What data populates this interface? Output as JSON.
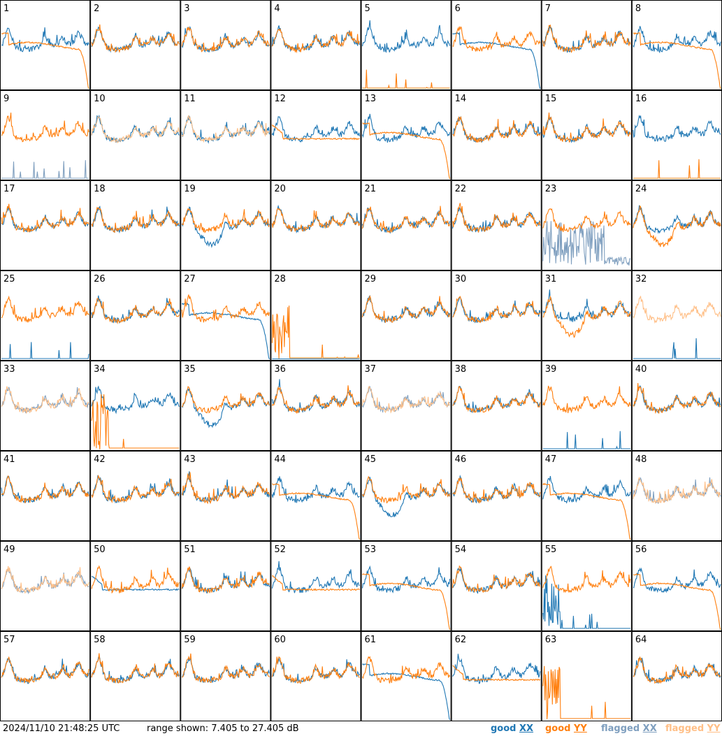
{
  "chart_data": {
    "type": "line",
    "panel_count": 64,
    "grid": "8x8",
    "panel_labels": [
      "1",
      "2",
      "3",
      "4",
      "5",
      "6",
      "7",
      "8",
      "9",
      "10",
      "11",
      "12",
      "13",
      "14",
      "15",
      "16",
      "17",
      "18",
      "19",
      "20",
      "21",
      "22",
      "23",
      "24",
      "25",
      "26",
      "27",
      "28",
      "29",
      "30",
      "31",
      "32",
      "33",
      "34",
      "35",
      "36",
      "37",
      "38",
      "39",
      "40",
      "41",
      "42",
      "43",
      "44",
      "45",
      "46",
      "47",
      "48",
      "49",
      "50",
      "51",
      "52",
      "53",
      "54",
      "55",
      "56",
      "57",
      "58",
      "59",
      "60",
      "61",
      "62",
      "63",
      "64"
    ],
    "y_range_db": [
      7.405,
      27.405
    ],
    "series": [
      {
        "name": "good XX",
        "color": "#1f77b4"
      },
      {
        "name": "good YY",
        "color": "#ff7f0e"
      },
      {
        "name": "flagged XX",
        "color": "#7f9fbf"
      },
      {
        "name": "flagged YY",
        "color": "#ffbf87"
      }
    ],
    "panel_types": {
      "1": [
        "good",
        "rolloff"
      ],
      "5": [
        "good",
        "spikes"
      ],
      "6": [
        "rolloff",
        "good"
      ],
      "8": [
        "good",
        "rolloff"
      ],
      "9": [
        "fspikes",
        "good"
      ],
      "10": [
        "good",
        "flag"
      ],
      "11": [
        "good",
        "flag"
      ],
      "12": [
        "good",
        "flat"
      ],
      "13": [
        "good",
        "rolloff"
      ],
      "16": [
        "good",
        "spikes"
      ],
      "19": [
        "dip",
        "good"
      ],
      "23": [
        "fnoise",
        "good"
      ],
      "24": [
        "good",
        "dip"
      ],
      "25": [
        "spikes",
        "good"
      ],
      "27": [
        "rolloff",
        "good"
      ],
      "28": [
        "zero",
        "noise"
      ],
      "31": [
        "good",
        "dip"
      ],
      "32": [
        "spikes",
        "flag"
      ],
      "33": [
        "flag",
        "flag"
      ],
      "34": [
        "good",
        "noise"
      ],
      "35": [
        "dip",
        "good"
      ],
      "37": [
        "flag",
        "flag"
      ],
      "39": [
        "spikes",
        "good"
      ],
      "44": [
        "good",
        "rolloff"
      ],
      "45": [
        "dip",
        "good"
      ],
      "47": [
        "good",
        "rolloff"
      ],
      "48": [
        "flag",
        "flag"
      ],
      "49": [
        "flag",
        "flag"
      ],
      "50": [
        "flat",
        "good"
      ],
      "52": [
        "good",
        "flat"
      ],
      "53": [
        "good",
        "rolloff"
      ],
      "55": [
        "noise",
        "good"
      ],
      "56": [
        "good",
        "rolloff"
      ],
      "61": [
        "rolloff",
        "good"
      ],
      "62": [
        "good",
        "flat"
      ],
      "63": [
        "empty",
        "noise"
      ]
    }
  },
  "footer": {
    "timestamp": "2024/11/10 21:48:25 UTC",
    "range_text": "range shown: 7.405 to 27.405 dB",
    "legend": [
      {
        "prefix": "good ",
        "suffix": "XX",
        "color": "#1f77b4"
      },
      {
        "prefix": "good ",
        "suffix": "YY",
        "color": "#ff7f0e"
      },
      {
        "prefix": "flagged ",
        "suffix": "XX",
        "color": "#7f9fbf"
      },
      {
        "prefix": "flagged ",
        "suffix": "YY",
        "color": "#ffbf87"
      }
    ]
  }
}
